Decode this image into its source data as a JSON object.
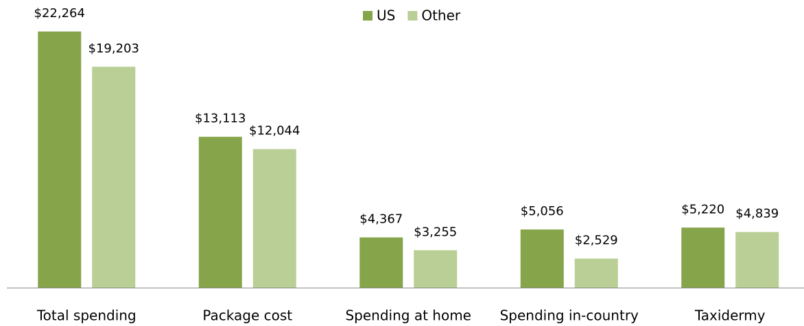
{
  "chart_data": {
    "type": "bar",
    "categories": [
      "Total spending",
      "Package cost",
      "Spending at home",
      "Spending in-country",
      "Taxidermy"
    ],
    "series": [
      {
        "name": "US",
        "color": "#86a44a",
        "values": [
          22264,
          13113,
          4367,
          5056,
          5220
        ],
        "value_labels": [
          "$22,264",
          "$13,113",
          "$4,367",
          "$5,056",
          "$5,220"
        ]
      },
      {
        "name": "Other",
        "color": "#b9cf95",
        "values": [
          19203,
          12044,
          3255,
          2529,
          4839
        ],
        "value_labels": [
          "$19,203",
          "$12,044",
          "$3,255",
          "$2,529",
          "$4,839"
        ]
      }
    ],
    "legend": "top"
  }
}
